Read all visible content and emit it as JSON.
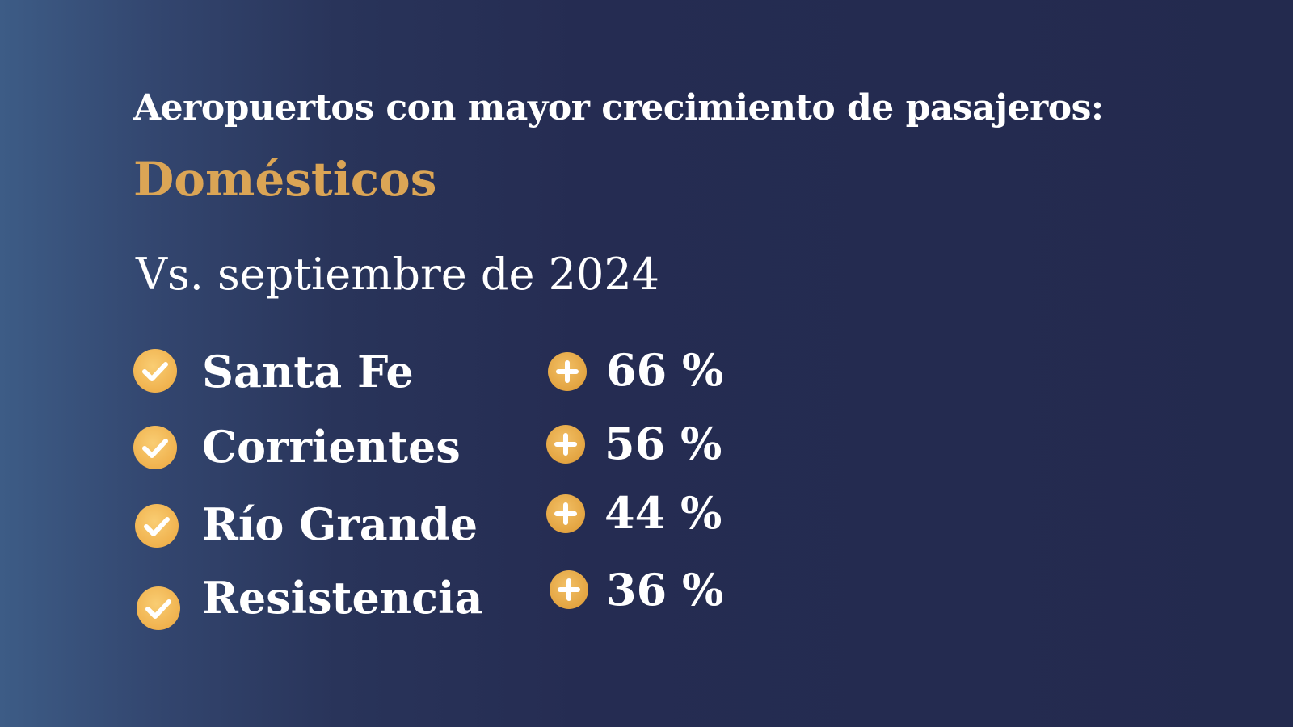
{
  "header": {
    "title": "Aeropuertos con mayor crecimiento de pasajeros:",
    "subtitle": "Domésticos",
    "comparison": "Vs. septiembre de 2024"
  },
  "airports": [
    {
      "name": "Santa Fe",
      "growth": "66 %"
    },
    {
      "name": "Corrientes",
      "growth": "56 %"
    },
    {
      "name": "Río Grande",
      "growth": "44 %"
    },
    {
      "name": "Resistencia",
      "growth": "36 %"
    }
  ],
  "icons": {
    "check": "check-icon",
    "plus": "plus-icon"
  },
  "colors": {
    "accent": "#dba555",
    "icon": "#f0b24e",
    "background": "#232a4e",
    "text": "#ffffff"
  }
}
